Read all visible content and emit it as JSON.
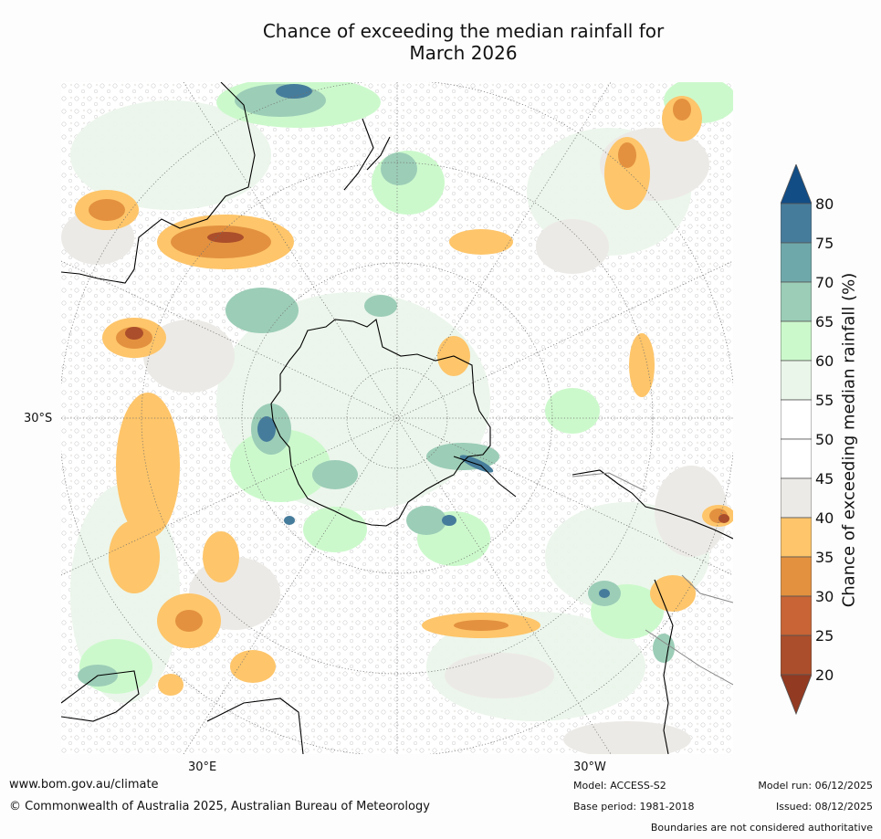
{
  "title_line1": "Chance of exceeding the median rainfall for",
  "title_line2": "March 2026",
  "map": {
    "projection": "south-polar-stereographic",
    "lon_labels": [
      "30°E",
      "30°W"
    ],
    "lat_labels": [
      "30°S"
    ],
    "regions_shown": [
      "Australia",
      "New Zealand",
      "Antarctica",
      "South America",
      "Southern Africa"
    ]
  },
  "colorbar": {
    "label": "Chance of exceeding median rainfall (%)",
    "ticks": [
      "80",
      "75",
      "70",
      "65",
      "60",
      "55",
      "50",
      "45",
      "40",
      "35",
      "30",
      "25",
      "20"
    ],
    "bins": [
      {
        "range": ">80",
        "color": "#124d86"
      },
      {
        "range": "75-80",
        "color": "#467c9b"
      },
      {
        "range": "70-75",
        "color": "#6fa8aa"
      },
      {
        "range": "65-70",
        "color": "#9ccdb7"
      },
      {
        "range": "60-65",
        "color": "#ccf9cc"
      },
      {
        "range": "55-60",
        "color": "#ebf6eb"
      },
      {
        "range": "50-55",
        "color": "#ffffff"
      },
      {
        "range": "45-50",
        "color": "#ffffff"
      },
      {
        "range": "40-45",
        "color": "#eceae6"
      },
      {
        "range": "35-40",
        "color": "#fec56a"
      },
      {
        "range": "30-35",
        "color": "#e3913f"
      },
      {
        "range": "25-30",
        "color": "#c86435"
      },
      {
        "range": "20-25",
        "color": "#ab4e2b"
      },
      {
        "range": "<20",
        "color": "#923a22"
      }
    ]
  },
  "footer": {
    "url": "www.bom.gov.au/climate",
    "copyright": "© Commonwealth of Australia 2025, Australian Bureau of Meteorology",
    "model": "Model: ACCESS-S2",
    "base_period": "Base period: 1981-2018",
    "model_run": "Model run: 06/12/2025",
    "issued": "Issued: 08/12/2025",
    "disclaimer": "Boundaries are not considered authoritative"
  }
}
